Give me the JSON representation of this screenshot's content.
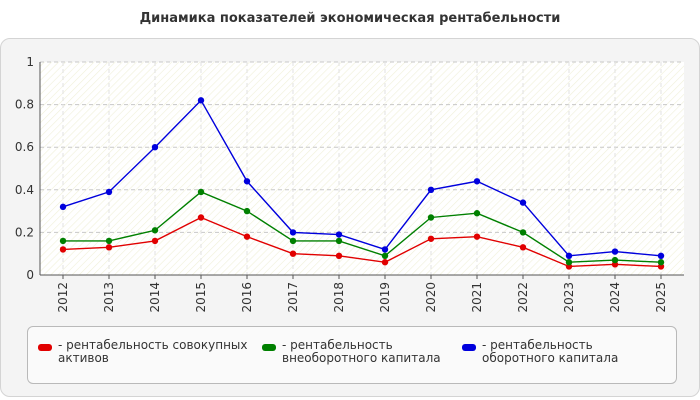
{
  "title": "Динамика показателей экономическая рентабельности",
  "chart_data": {
    "type": "line",
    "x": [
      "2012",
      "2013",
      "2014",
      "2015",
      "2016",
      "2017",
      "2018",
      "2019",
      "2020",
      "2021",
      "2022",
      "2023",
      "2024",
      "2025"
    ],
    "ylim": [
      0,
      1
    ],
    "yticks": [
      "0",
      "0.2",
      "0.4",
      "0.6",
      "0.8",
      "1"
    ],
    "grid": true,
    "legend_position": "bottom",
    "series": [
      {
        "name": "- рентабельность совокупных активов",
        "color": "#e10000",
        "values": [
          0.12,
          0.13,
          0.16,
          0.27,
          0.18,
          0.1,
          0.09,
          0.06,
          0.17,
          0.18,
          0.13,
          0.04,
          0.05,
          0.04
        ]
      },
      {
        "name": "- рентабельность внеоборотного капитала",
        "color": "#008000",
        "values": [
          0.16,
          0.16,
          0.21,
          0.39,
          0.3,
          0.16,
          0.16,
          0.09,
          0.27,
          0.29,
          0.2,
          0.06,
          0.07,
          0.06
        ]
      },
      {
        "name": "- рентабельность оборотного капитала",
        "color": "#0000dd",
        "values": [
          0.32,
          0.39,
          0.6,
          0.82,
          0.44,
          0.2,
          0.19,
          0.12,
          0.4,
          0.44,
          0.34,
          0.09,
          0.11,
          0.09
        ]
      }
    ]
  }
}
